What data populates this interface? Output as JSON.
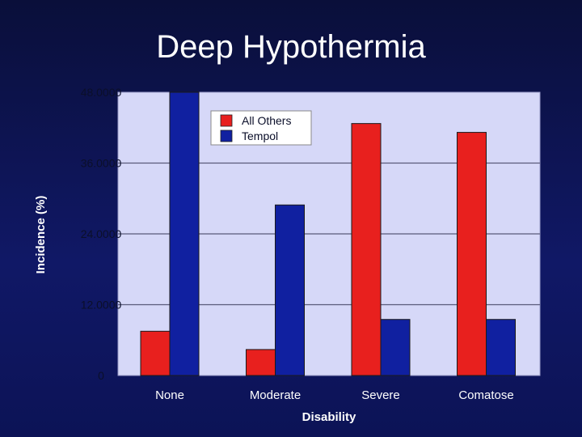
{
  "slide": {
    "title": "Deep Hypothermia"
  },
  "chart_data": {
    "type": "bar",
    "title": "Deep Hypothermia",
    "xlabel": "Disability",
    "ylabel": "Incidence (%)",
    "categories": [
      "None",
      "Moderate",
      "Severe",
      "Comatose"
    ],
    "y_ticks": [
      "0",
      "12.0000",
      "24.0000",
      "36.0000",
      "48.0000"
    ],
    "ylim": [
      0,
      48
    ],
    "grid": true,
    "legend_position": "top-left",
    "series": [
      {
        "name": "All Others",
        "color": "#e8201e",
        "values": [
          7.5,
          4.4,
          42.7,
          41.2
        ]
      },
      {
        "name": "Tempol",
        "color": "#1020a0",
        "values": [
          48,
          28.9,
          9.5,
          9.5
        ]
      }
    ]
  }
}
